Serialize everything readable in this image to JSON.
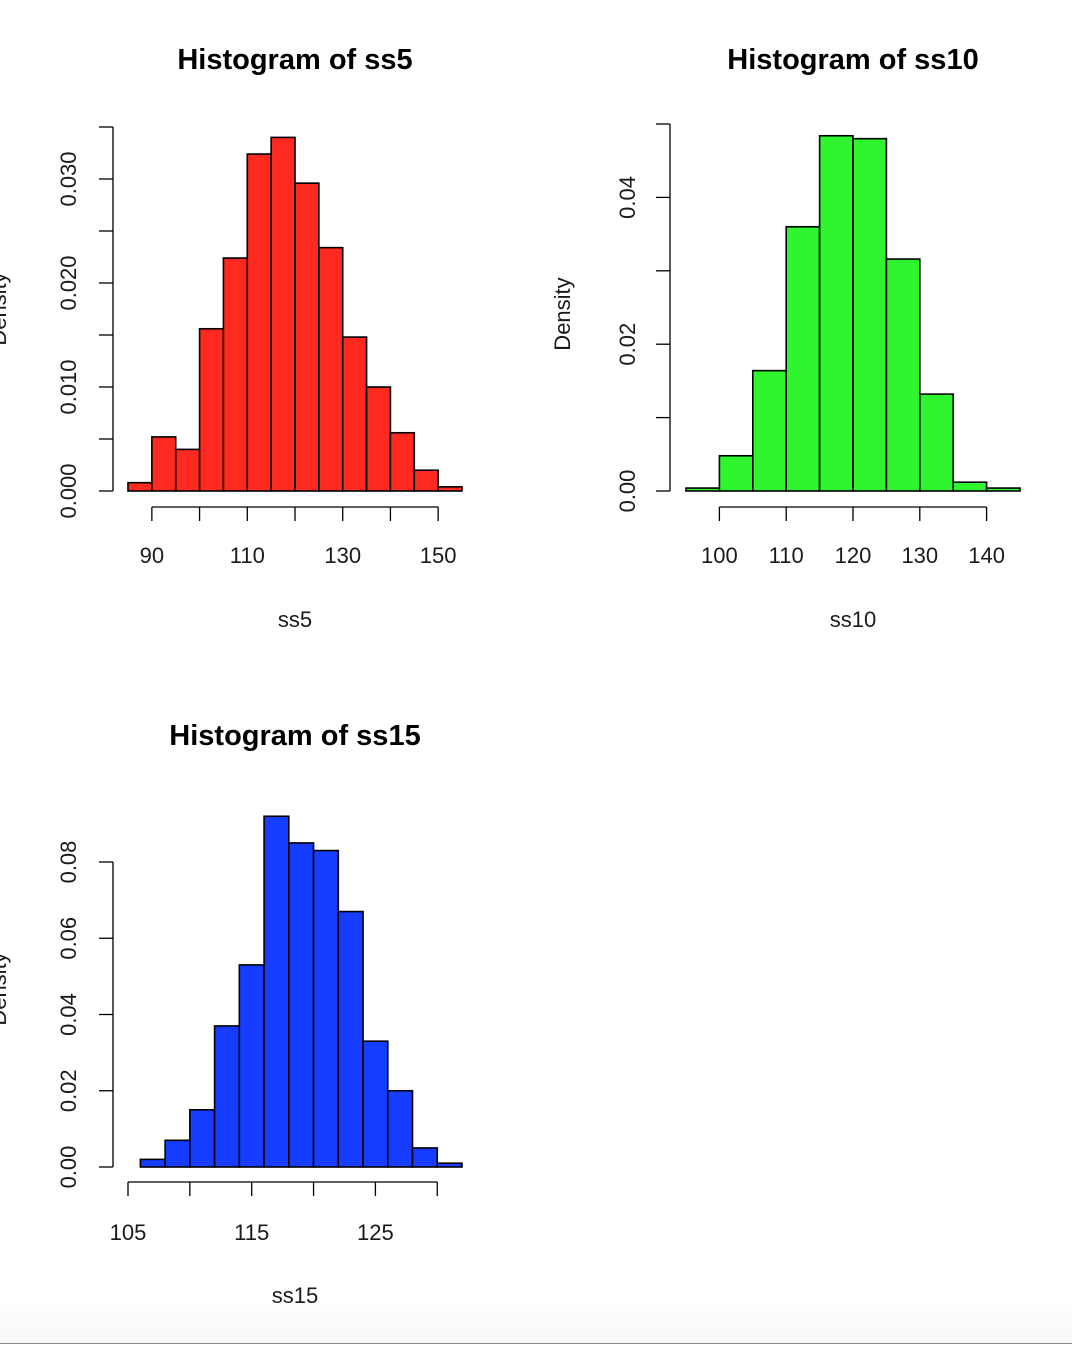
{
  "chart_data": [
    {
      "type": "bar",
      "title": "Histogram of ss5",
      "xlabel": "ss5",
      "ylabel": "Density",
      "color": "#ff2a1f",
      "bin_edges": [
        85,
        90,
        95,
        100,
        105,
        110,
        115,
        120,
        125,
        130,
        135,
        140,
        145,
        150,
        155
      ],
      "values": [
        0.0008,
        0.0052,
        0.004,
        0.0156,
        0.0224,
        0.0324,
        0.034,
        0.0296,
        0.0234,
        0.0148,
        0.01,
        0.0056,
        0.002,
        0.0004
      ],
      "xlim": [
        85,
        155
      ],
      "ylim": [
        0,
        0.035
      ],
      "xticks": [
        90,
        100,
        110,
        120,
        130,
        140,
        150
      ],
      "xtick_labels": [
        "90",
        "",
        "110",
        "",
        "130",
        "",
        "150"
      ],
      "yticks": [
        0,
        0.005,
        0.01,
        0.015,
        0.02,
        0.025,
        0.03,
        0.035
      ],
      "ytick_labels": [
        "0.000",
        "",
        "0.010",
        "",
        "0.020",
        "",
        "0.030",
        ""
      ],
      "grid": false
    },
    {
      "type": "bar",
      "title": "Histogram of ss10",
      "xlabel": "ss10",
      "ylabel": "Density",
      "color": "#2ef52e",
      "bin_edges": [
        95,
        100,
        105,
        110,
        115,
        120,
        125,
        130,
        135,
        140,
        145
      ],
      "values": [
        0.0004,
        0.0048,
        0.0164,
        0.036,
        0.0484,
        0.048,
        0.0316,
        0.0132,
        0.0012,
        0.0004
      ],
      "xlim": [
        95,
        145
      ],
      "ylim": [
        0,
        0.05
      ],
      "xticks": [
        100,
        110,
        120,
        130,
        140
      ],
      "xtick_labels": [
        "100",
        "110",
        "120",
        "130",
        "140"
      ],
      "yticks": [
        0,
        0.01,
        0.02,
        0.03,
        0.04,
        0.05
      ],
      "ytick_labels": [
        "0.00",
        "",
        "0.02",
        "",
        "0.04",
        ""
      ],
      "grid": false
    },
    {
      "type": "bar",
      "title": "Histogram of ss15",
      "xlabel": "ss15",
      "ylabel": "Density",
      "color": "#163cff",
      "bin_edges": [
        106,
        108,
        110,
        112,
        114,
        116,
        118,
        120,
        122,
        124,
        126,
        128,
        130,
        132
      ],
      "values": [
        0.002,
        0.007,
        0.015,
        0.037,
        0.053,
        0.092,
        0.085,
        0.083,
        0.067,
        0.033,
        0.02,
        0.005,
        0.001
      ],
      "xlim": [
        105,
        132
      ],
      "ylim": [
        0,
        0.08
      ],
      "xticks": [
        105,
        110,
        115,
        120,
        125,
        130
      ],
      "xtick_labels": [
        "105",
        "",
        "115",
        "",
        "125",
        ""
      ],
      "yticks": [
        0,
        0.02,
        0.04,
        0.06,
        0.08
      ],
      "ytick_labels": [
        "0.00",
        "0.02",
        "0.04",
        "0.06",
        "0.08"
      ],
      "grid": false
    }
  ]
}
